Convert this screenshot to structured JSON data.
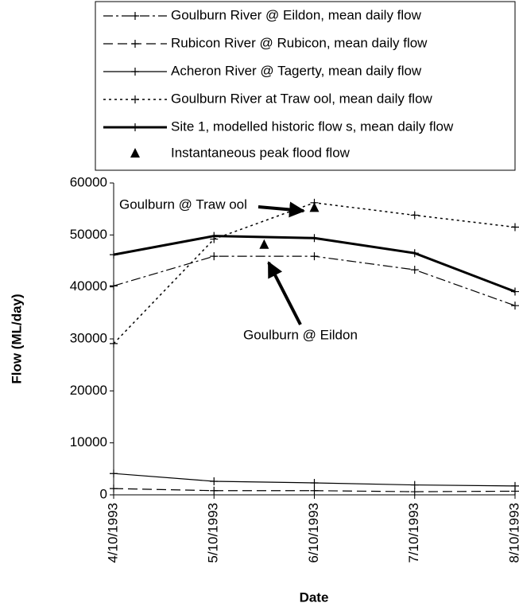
{
  "chart_data": {
    "type": "line",
    "categories": [
      "4/10/1993",
      "5/10/1993",
      "6/10/1993",
      "7/10/1993",
      "8/10/1993"
    ],
    "series": [
      {
        "name": "Goulburn River @ Eildon, mean daily flow",
        "color": "#000000",
        "style": "dashdot",
        "values": [
          40200,
          45900,
          45900,
          43300,
          36400
        ]
      },
      {
        "name": "Rubicon River @ Rubicon, mean daily flow",
        "color": "#000000",
        "style": "dashed",
        "values": [
          1200,
          800,
          800,
          600,
          700
        ]
      },
      {
        "name": "Acheron River @ Tagerty, mean daily flow",
        "color": "#000000",
        "style": "solid",
        "values": [
          4100,
          2600,
          2300,
          1900,
          1700
        ]
      },
      {
        "name": "Goulburn River at Traw ool, mean daily flow",
        "color": "#000000",
        "style": "dotted",
        "values": [
          29100,
          49200,
          56200,
          53800,
          51500
        ]
      },
      {
        "name": "Site 1, modelled historic flow s, mean daily flow",
        "color": "#000000",
        "style": "thick",
        "values": [
          46200,
          49800,
          49400,
          46500,
          39100
        ]
      }
    ],
    "peaks": {
      "name": "Instantaneous peak flood flow",
      "color": "#000000",
      "x": [
        1.5,
        2
      ],
      "values": [
        48100,
        55200
      ]
    },
    "annotations": [
      "Goulburn @ Traw ool",
      "Goulburn @ Eildon"
    ],
    "y_label": "Flow (ML/day)",
    "x_label": "Date",
    "ylim": [
      0,
      60000
    ],
    "yticks": [
      0,
      10000,
      20000,
      30000,
      40000,
      50000,
      60000
    ]
  }
}
